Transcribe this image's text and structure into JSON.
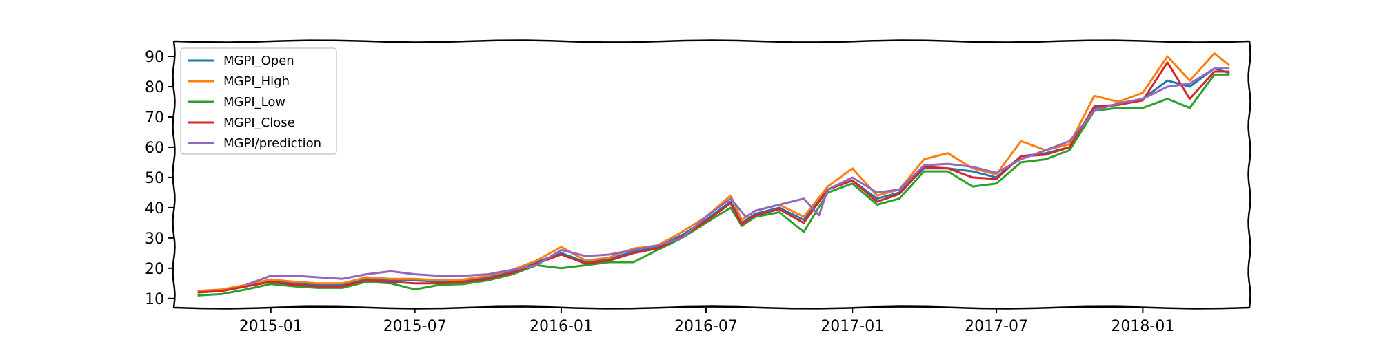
{
  "chart_data": {
    "type": "line",
    "title": "",
    "xlabel": "",
    "ylabel": "",
    "xlim": [
      "2014-09-01",
      "2018-05-15"
    ],
    "ylim": [
      7,
      95
    ],
    "grid": false,
    "legend_position": "top-left",
    "x_ticks": [
      "2015-01",
      "2015-07",
      "2016-01",
      "2016-07",
      "2017-01",
      "2017-07",
      "2018-01"
    ],
    "y_ticks": [
      10,
      20,
      30,
      40,
      50,
      60,
      70,
      80,
      90
    ],
    "series": [
      {
        "name": "MGPI_Open",
        "color": "#1f77b4",
        "points": [
          [
            "2014-10-01",
            12.0
          ],
          [
            "2014-11-01",
            12.5
          ],
          [
            "2014-12-01",
            14.0
          ],
          [
            "2015-01-01",
            15.8
          ],
          [
            "2015-02-01",
            15.0
          ],
          [
            "2015-03-01",
            14.5
          ],
          [
            "2015-04-01",
            14.5
          ],
          [
            "2015-05-01",
            16.5
          ],
          [
            "2015-06-01",
            16.0
          ],
          [
            "2015-07-01",
            16.0
          ],
          [
            "2015-08-01",
            15.5
          ],
          [
            "2015-09-01",
            15.8
          ],
          [
            "2015-10-01",
            17.0
          ],
          [
            "2015-11-01",
            19.0
          ],
          [
            "2015-12-01",
            22.0
          ],
          [
            "2016-01-01",
            25.0
          ],
          [
            "2016-02-01",
            22.0
          ],
          [
            "2016-03-01",
            23.0
          ],
          [
            "2016-04-01",
            25.5
          ],
          [
            "2016-05-01",
            27.0
          ],
          [
            "2016-06-01",
            31.0
          ],
          [
            "2016-07-01",
            36.0
          ],
          [
            "2016-08-01",
            42.0
          ],
          [
            "2016-08-15",
            35.0
          ],
          [
            "2016-09-01",
            38.0
          ],
          [
            "2016-10-01",
            40.0
          ],
          [
            "2016-11-01",
            36.0
          ],
          [
            "2016-12-01",
            46.0
          ],
          [
            "2017-01-01",
            49.0
          ],
          [
            "2017-02-01",
            43.0
          ],
          [
            "2017-03-01",
            45.0
          ],
          [
            "2017-04-01",
            53.0
          ],
          [
            "2017-05-01",
            53.0
          ],
          [
            "2017-06-01",
            52.0
          ],
          [
            "2017-07-01",
            50.0
          ],
          [
            "2017-08-01",
            57.0
          ],
          [
            "2017-09-01",
            58.0
          ],
          [
            "2017-10-01",
            60.0
          ],
          [
            "2017-11-01",
            73.0
          ],
          [
            "2017-12-01",
            74.0
          ],
          [
            "2018-01-01",
            76.0
          ],
          [
            "2018-02-01",
            82.0
          ],
          [
            "2018-03-01",
            80.0
          ],
          [
            "2018-04-01",
            86.0
          ],
          [
            "2018-04-20",
            84.5
          ]
        ]
      },
      {
        "name": "MGPI_High",
        "color": "#ff7f0e",
        "points": [
          [
            "2014-10-01",
            12.5
          ],
          [
            "2014-11-01",
            13.0
          ],
          [
            "2014-12-01",
            14.5
          ],
          [
            "2015-01-01",
            16.3
          ],
          [
            "2015-02-01",
            15.5
          ],
          [
            "2015-03-01",
            15.0
          ],
          [
            "2015-04-01",
            15.0
          ],
          [
            "2015-05-01",
            17.0
          ],
          [
            "2015-06-01",
            16.5
          ],
          [
            "2015-07-01",
            16.5
          ],
          [
            "2015-08-01",
            16.0
          ],
          [
            "2015-09-01",
            16.3
          ],
          [
            "2015-10-01",
            17.5
          ],
          [
            "2015-11-01",
            19.5
          ],
          [
            "2015-12-01",
            22.5
          ],
          [
            "2016-01-01",
            27.0
          ],
          [
            "2016-02-01",
            22.5
          ],
          [
            "2016-03-01",
            23.5
          ],
          [
            "2016-04-01",
            26.5
          ],
          [
            "2016-05-01",
            27.5
          ],
          [
            "2016-06-01",
            32.0
          ],
          [
            "2016-07-01",
            37.0
          ],
          [
            "2016-08-01",
            44.0
          ],
          [
            "2016-08-15",
            36.0
          ],
          [
            "2016-09-01",
            39.0
          ],
          [
            "2016-10-01",
            41.0
          ],
          [
            "2016-11-01",
            37.0
          ],
          [
            "2016-12-01",
            47.0
          ],
          [
            "2017-01-01",
            53.0
          ],
          [
            "2017-02-01",
            44.0
          ],
          [
            "2017-03-01",
            46.0
          ],
          [
            "2017-04-01",
            56.0
          ],
          [
            "2017-05-01",
            58.0
          ],
          [
            "2017-06-01",
            53.0
          ],
          [
            "2017-07-01",
            51.0
          ],
          [
            "2017-08-01",
            62.0
          ],
          [
            "2017-09-01",
            59.0
          ],
          [
            "2017-10-01",
            61.0
          ],
          [
            "2017-11-01",
            77.0
          ],
          [
            "2017-12-01",
            75.0
          ],
          [
            "2018-01-01",
            78.0
          ],
          [
            "2018-02-01",
            90.0
          ],
          [
            "2018-03-01",
            82.0
          ],
          [
            "2018-04-01",
            91.0
          ],
          [
            "2018-04-20",
            87.0
          ]
        ]
      },
      {
        "name": "MGPI_Low",
        "color": "#2ca02c",
        "points": [
          [
            "2014-10-01",
            11.0
          ],
          [
            "2014-11-01",
            11.5
          ],
          [
            "2014-12-01",
            13.0
          ],
          [
            "2015-01-01",
            14.8
          ],
          [
            "2015-02-01",
            14.0
          ],
          [
            "2015-03-01",
            13.5
          ],
          [
            "2015-04-01",
            13.5
          ],
          [
            "2015-05-01",
            15.5
          ],
          [
            "2015-06-01",
            15.0
          ],
          [
            "2015-07-01",
            13.0
          ],
          [
            "2015-08-01",
            14.5
          ],
          [
            "2015-09-01",
            14.8
          ],
          [
            "2015-10-01",
            16.0
          ],
          [
            "2015-11-01",
            18.0
          ],
          [
            "2015-12-01",
            21.0
          ],
          [
            "2016-01-01",
            20.0
          ],
          [
            "2016-02-01",
            21.0
          ],
          [
            "2016-03-01",
            22.0
          ],
          [
            "2016-04-01",
            22.0
          ],
          [
            "2016-05-01",
            26.0
          ],
          [
            "2016-06-01",
            30.0
          ],
          [
            "2016-07-01",
            35.0
          ],
          [
            "2016-08-01",
            40.0
          ],
          [
            "2016-08-15",
            34.0
          ],
          [
            "2016-09-01",
            37.0
          ],
          [
            "2016-10-01",
            38.5
          ],
          [
            "2016-11-01",
            32.0
          ],
          [
            "2016-12-01",
            45.0
          ],
          [
            "2017-01-01",
            48.0
          ],
          [
            "2017-02-01",
            41.0
          ],
          [
            "2017-03-01",
            43.0
          ],
          [
            "2017-04-01",
            52.0
          ],
          [
            "2017-05-01",
            52.0
          ],
          [
            "2017-06-01",
            47.0
          ],
          [
            "2017-07-01",
            48.0
          ],
          [
            "2017-08-01",
            55.0
          ],
          [
            "2017-09-01",
            56.0
          ],
          [
            "2017-10-01",
            59.0
          ],
          [
            "2017-11-01",
            72.0
          ],
          [
            "2017-12-01",
            73.0
          ],
          [
            "2018-01-01",
            73.0
          ],
          [
            "2018-02-01",
            76.0
          ],
          [
            "2018-03-01",
            73.0
          ],
          [
            "2018-04-01",
            84.0
          ],
          [
            "2018-04-20",
            84.0
          ]
        ]
      },
      {
        "name": "MGPI_Close",
        "color": "#d62728",
        "points": [
          [
            "2014-10-01",
            12.0
          ],
          [
            "2014-11-01",
            12.5
          ],
          [
            "2014-12-01",
            14.0
          ],
          [
            "2015-01-01",
            15.5
          ],
          [
            "2015-02-01",
            14.5
          ],
          [
            "2015-03-01",
            14.0
          ],
          [
            "2015-04-01",
            14.0
          ],
          [
            "2015-05-01",
            16.0
          ],
          [
            "2015-06-01",
            15.5
          ],
          [
            "2015-07-01",
            15.0
          ],
          [
            "2015-08-01",
            15.0
          ],
          [
            "2015-09-01",
            15.5
          ],
          [
            "2015-10-01",
            16.5
          ],
          [
            "2015-11-01",
            18.5
          ],
          [
            "2015-12-01",
            21.5
          ],
          [
            "2016-01-01",
            24.5
          ],
          [
            "2016-02-01",
            21.5
          ],
          [
            "2016-03-01",
            22.5
          ],
          [
            "2016-04-01",
            25.0
          ],
          [
            "2016-05-01",
            26.5
          ],
          [
            "2016-06-01",
            30.5
          ],
          [
            "2016-07-01",
            35.5
          ],
          [
            "2016-08-01",
            41.5
          ],
          [
            "2016-08-15",
            34.5
          ],
          [
            "2016-09-01",
            37.5
          ],
          [
            "2016-10-01",
            39.5
          ],
          [
            "2016-11-01",
            35.0
          ],
          [
            "2016-12-01",
            46.0
          ],
          [
            "2017-01-01",
            49.0
          ],
          [
            "2017-02-01",
            42.0
          ],
          [
            "2017-03-01",
            44.5
          ],
          [
            "2017-04-01",
            53.5
          ],
          [
            "2017-05-01",
            53.0
          ],
          [
            "2017-06-01",
            50.0
          ],
          [
            "2017-07-01",
            49.5
          ],
          [
            "2017-08-01",
            57.0
          ],
          [
            "2017-09-01",
            57.5
          ],
          [
            "2017-10-01",
            60.0
          ],
          [
            "2017-11-01",
            73.5
          ],
          [
            "2017-12-01",
            74.0
          ],
          [
            "2018-01-01",
            75.5
          ],
          [
            "2018-02-01",
            88.0
          ],
          [
            "2018-03-01",
            76.0
          ],
          [
            "2018-04-01",
            85.0
          ],
          [
            "2018-04-20",
            85.0
          ]
        ]
      },
      {
        "name": "MGPI/prediction",
        "color": "#9467bd",
        "points": [
          [
            "2014-12-01",
            14.5
          ],
          [
            "2015-01-01",
            17.5
          ],
          [
            "2015-02-01",
            17.5
          ],
          [
            "2015-03-01",
            17.0
          ],
          [
            "2015-04-01",
            16.5
          ],
          [
            "2015-05-01",
            18.0
          ],
          [
            "2015-06-01",
            19.0
          ],
          [
            "2015-07-01",
            18.0
          ],
          [
            "2015-08-01",
            17.5
          ],
          [
            "2015-09-01",
            17.5
          ],
          [
            "2015-10-01",
            18.0
          ],
          [
            "2015-11-01",
            19.5
          ],
          [
            "2015-12-01",
            21.0
          ],
          [
            "2016-01-01",
            26.0
          ],
          [
            "2016-02-01",
            24.0
          ],
          [
            "2016-03-01",
            24.5
          ],
          [
            "2016-04-01",
            26.0
          ],
          [
            "2016-05-01",
            27.5
          ],
          [
            "2016-06-01",
            30.0
          ],
          [
            "2016-07-01",
            37.0
          ],
          [
            "2016-08-01",
            43.0
          ],
          [
            "2016-08-20",
            37.0
          ],
          [
            "2016-09-01",
            39.0
          ],
          [
            "2016-10-01",
            41.0
          ],
          [
            "2016-11-01",
            43.0
          ],
          [
            "2016-11-20",
            37.5
          ],
          [
            "2016-12-01",
            46.0
          ],
          [
            "2017-01-01",
            50.0
          ],
          [
            "2017-02-01",
            45.0
          ],
          [
            "2017-03-01",
            46.0
          ],
          [
            "2017-04-01",
            54.0
          ],
          [
            "2017-05-01",
            54.5
          ],
          [
            "2017-06-01",
            53.5
          ],
          [
            "2017-07-01",
            51.5
          ],
          [
            "2017-08-01",
            56.0
          ],
          [
            "2017-09-01",
            59.0
          ],
          [
            "2017-10-01",
            62.0
          ],
          [
            "2017-11-01",
            72.0
          ],
          [
            "2017-12-01",
            74.5
          ],
          [
            "2018-01-01",
            76.0
          ],
          [
            "2018-02-01",
            80.0
          ],
          [
            "2018-03-01",
            81.0
          ],
          [
            "2018-04-01",
            86.0
          ],
          [
            "2018-04-20",
            86.0
          ]
        ]
      }
    ]
  }
}
